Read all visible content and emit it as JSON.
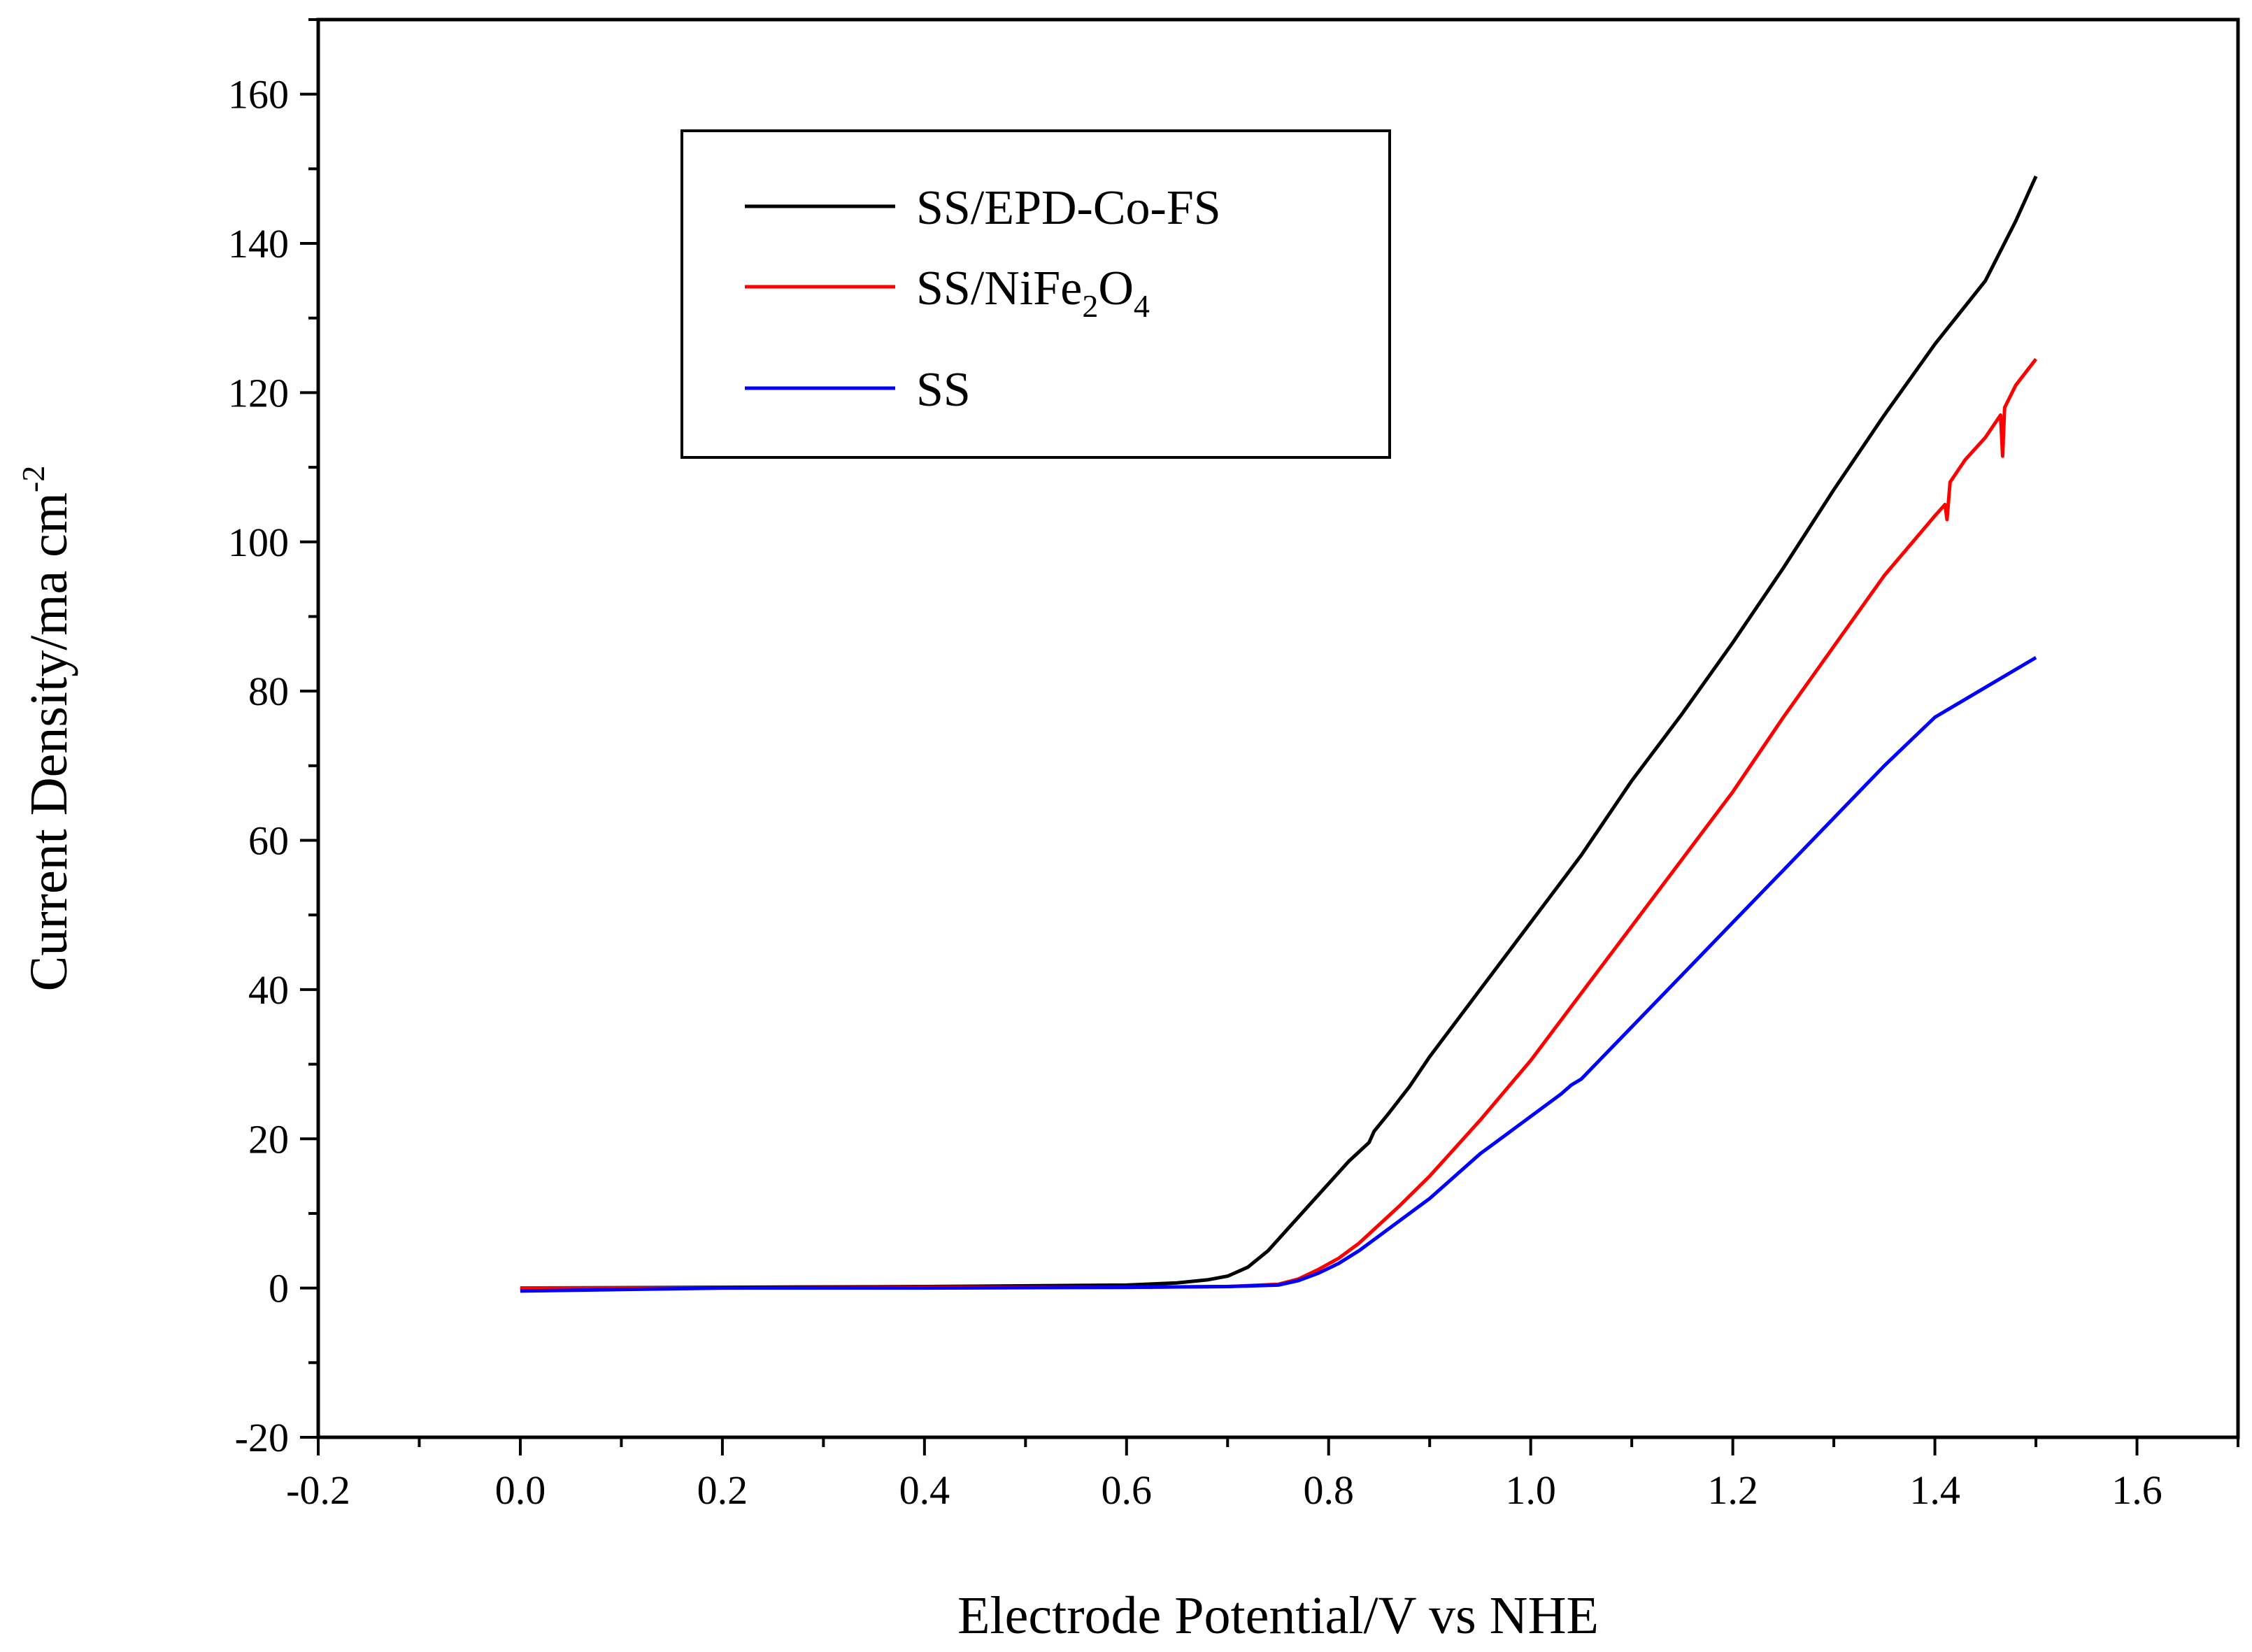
{
  "chart_data": {
    "type": "line",
    "title": "",
    "xlabel": "Electrode Potential/V vs NHE",
    "ylabel_text": "Current Density/ma cm",
    "ylabel_superscript": "-2",
    "xlim": [
      -0.2,
      1.7
    ],
    "ylim": [
      -20,
      170
    ],
    "x_ticks": [
      -0.2,
      0.0,
      0.2,
      0.4,
      0.6,
      0.8,
      1.0,
      1.2,
      1.4,
      1.6
    ],
    "x_tick_labels": [
      "-0.2",
      "0.0",
      "0.2",
      "0.4",
      "0.6",
      "0.8",
      "1.0",
      "1.2",
      "1.4",
      "1.6"
    ],
    "y_ticks": [
      -20,
      0,
      20,
      40,
      60,
      80,
      100,
      120,
      140,
      160
    ],
    "y_tick_labels": [
      "-20",
      "0",
      "20",
      "40",
      "60",
      "80",
      "100",
      "120",
      "140",
      "160"
    ],
    "grid": false,
    "legend_position": "top-left inside plot",
    "series": [
      {
        "name": "SS/EPD-Co-FS",
        "legend_base": "SS/EPD-Co-FS",
        "color": "#000000",
        "x": [
          0.0,
          0.2,
          0.4,
          0.6,
          0.65,
          0.68,
          0.7,
          0.72,
          0.74,
          0.76,
          0.78,
          0.8,
          0.82,
          0.84,
          0.845,
          0.86,
          0.88,
          0.9,
          0.95,
          1.0,
          1.05,
          1.1,
          1.15,
          1.2,
          1.25,
          1.3,
          1.35,
          1.4,
          1.45,
          1.48,
          1.5
        ],
        "y": [
          0.0,
          0.1,
          0.2,
          0.4,
          0.7,
          1.1,
          1.6,
          2.8,
          5.0,
          8.0,
          11.0,
          14.0,
          17.0,
          19.5,
          21.0,
          23.5,
          27.0,
          31.0,
          40.0,
          49.0,
          58.0,
          68.0,
          77.0,
          86.5,
          96.5,
          107.0,
          117.0,
          126.5,
          135.0,
          143.0,
          149.0
        ]
      },
      {
        "name": "SS/NiFe2O4",
        "legend_base": "SS/NiFe",
        "legend_sub1": "2",
        "legend_mid": "O",
        "legend_sub2": "4",
        "color": "#ff0000",
        "x": [
          0.0,
          0.2,
          0.4,
          0.6,
          0.7,
          0.75,
          0.77,
          0.79,
          0.81,
          0.83,
          0.85,
          0.87,
          0.9,
          0.95,
          1.0,
          1.05,
          1.1,
          1.15,
          1.2,
          1.25,
          1.3,
          1.35,
          1.4,
          1.41,
          1.412,
          1.415,
          1.43,
          1.45,
          1.465,
          1.467,
          1.469,
          1.48,
          1.5
        ],
        "y": [
          0.0,
          0.0,
          0.1,
          0.1,
          0.2,
          0.5,
          1.2,
          2.5,
          4.0,
          6.0,
          8.5,
          11.0,
          15.0,
          22.5,
          30.5,
          39.5,
          48.5,
          57.5,
          66.5,
          76.5,
          86.0,
          95.5,
          103.5,
          105.0,
          103.0,
          108.0,
          111.0,
          114.0,
          117.0,
          111.5,
          118.0,
          121.0,
          124.5
        ]
      },
      {
        "name": "SS",
        "legend_base": "SS",
        "color": "#0000ff",
        "x": [
          0.0,
          0.2,
          0.4,
          0.6,
          0.7,
          0.75,
          0.77,
          0.79,
          0.81,
          0.83,
          0.85,
          0.87,
          0.9,
          0.95,
          1.0,
          1.03,
          1.04,
          1.05,
          1.1,
          1.15,
          1.2,
          1.25,
          1.3,
          1.35,
          1.4,
          1.45,
          1.5
        ],
        "y": [
          -0.4,
          0.0,
          0.0,
          0.1,
          0.2,
          0.4,
          1.0,
          2.0,
          3.3,
          5.0,
          7.0,
          9.0,
          12.0,
          18.0,
          23.0,
          26.0,
          27.2,
          28.0,
          35.0,
          42.0,
          49.0,
          56.0,
          63.0,
          70.0,
          76.5,
          80.5,
          84.5
        ]
      }
    ]
  }
}
